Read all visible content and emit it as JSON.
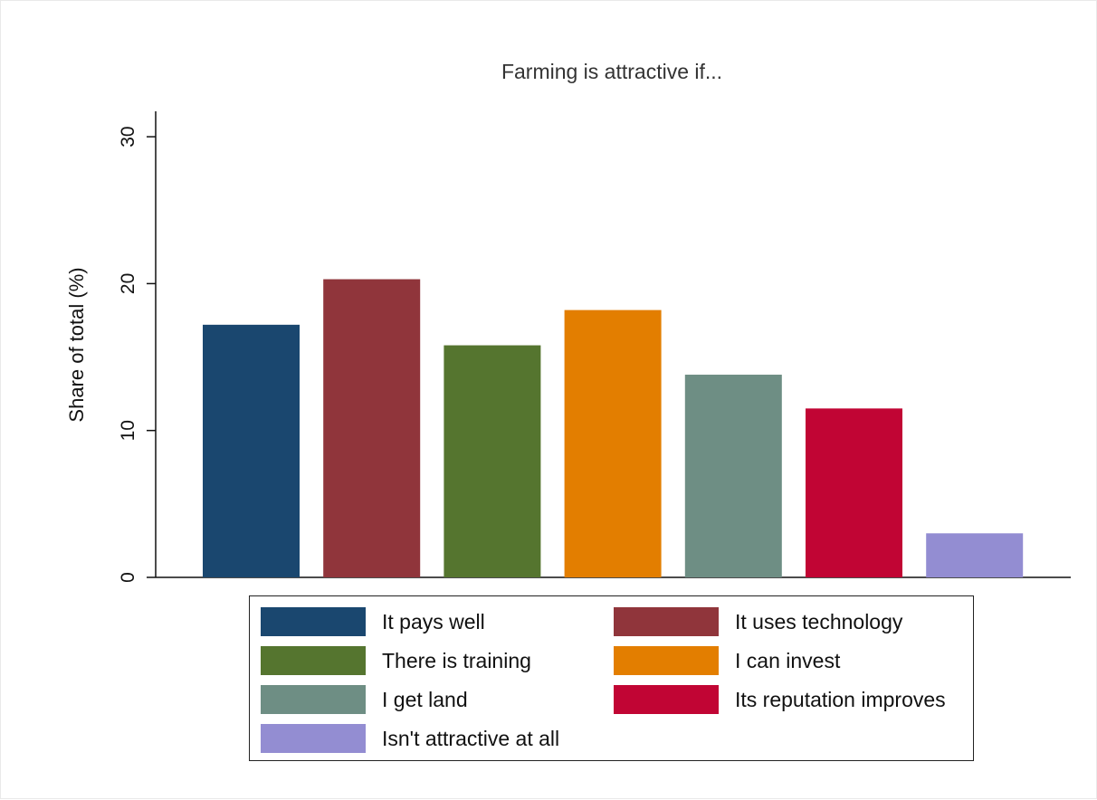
{
  "chart_data": {
    "type": "bar",
    "title": "Farming is attractive if...",
    "xlabel": "",
    "ylabel": "Share of total (%)",
    "ylim": [
      0,
      32
    ],
    "yticks": [
      "0",
      "10",
      "20",
      "30"
    ],
    "grid": false,
    "legend_placement": "bottom",
    "series": [
      {
        "name": "It pays well",
        "value": 17.2,
        "color": "#1a476f"
      },
      {
        "name": "It uses technology",
        "value": 20.3,
        "color": "#90353b"
      },
      {
        "name": "There is training",
        "value": 15.8,
        "color": "#55752f"
      },
      {
        "name": "I can invest",
        "value": 18.2,
        "color": "#e37e00"
      },
      {
        "name": "I get land",
        "value": 13.8,
        "color": "#6e8e84"
      },
      {
        "name": "Its reputation improves",
        "value": 11.5,
        "color": "#c10534"
      },
      {
        "name": "Isn't attractive at all",
        "value": 3.0,
        "color": "#938dd2"
      }
    ]
  }
}
